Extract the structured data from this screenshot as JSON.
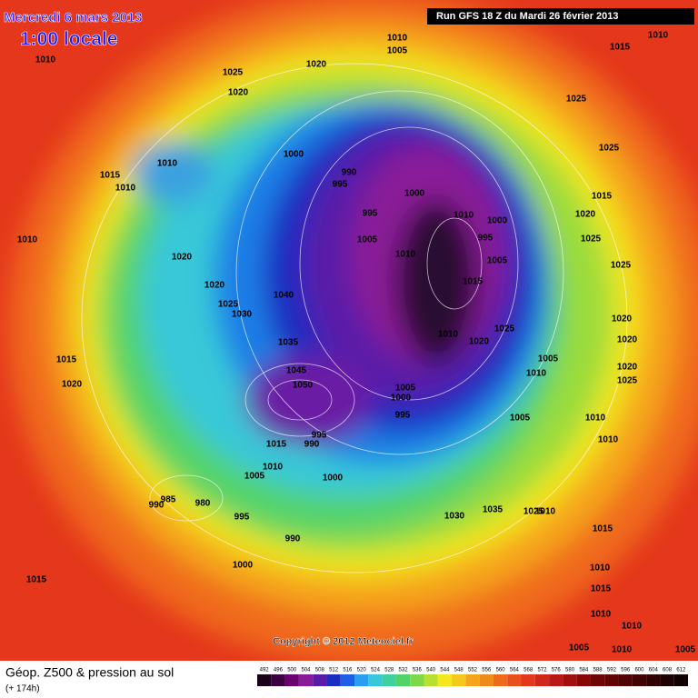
{
  "map": {
    "date": "Mercredi 6 mars 2013",
    "time": "1:00 locale",
    "run": "Run GFS 18 Z du Mardi 26 février 2013",
    "copyright": "Copyright © 2012 Meteociel.fr",
    "legend_title": "Géop. Z500 & pression au sol",
    "legend_subtitle": "(+ 174h)",
    "colorbar": [
      492,
      496,
      500,
      504,
      508,
      512,
      516,
      520,
      524,
      528,
      532,
      536,
      540,
      544,
      548,
      552,
      556,
      560,
      564,
      568,
      572,
      576,
      580,
      584,
      588,
      592,
      596,
      600,
      604,
      608,
      612
    ],
    "isobar_labels": [
      "1010",
      "1005",
      "1015",
      "1010",
      "1010",
      "1025",
      "1020",
      "1020",
      "1025",
      "1000",
      "990",
      "995",
      "1010",
      "1015",
      "1010",
      "1000",
      "995",
      "1010",
      "1000",
      "995",
      "1015",
      "1025",
      "1020",
      "1025",
      "1010",
      "1005",
      "1010",
      "1005",
      "1020",
      "1025",
      "1015",
      "1020",
      "1040",
      "1025",
      "1030",
      "1025",
      "1010",
      "1020",
      "1020",
      "1020",
      "1035",
      "1015",
      "1005",
      "1010",
      "1020",
      "1025",
      "1045",
      "1050",
      "1005",
      "1000",
      "995",
      "1020",
      "1010",
      "1005",
      "1010",
      "995",
      "990",
      "1015",
      "1010",
      "1005",
      "1000",
      "985",
      "980",
      "990",
      "995",
      "1030",
      "1035",
      "1025",
      "1010",
      "1015",
      "990",
      "1000",
      "1015",
      "1010",
      "1015",
      "1010",
      "1010",
      "1005",
      "1010",
      "1005"
    ]
  }
}
